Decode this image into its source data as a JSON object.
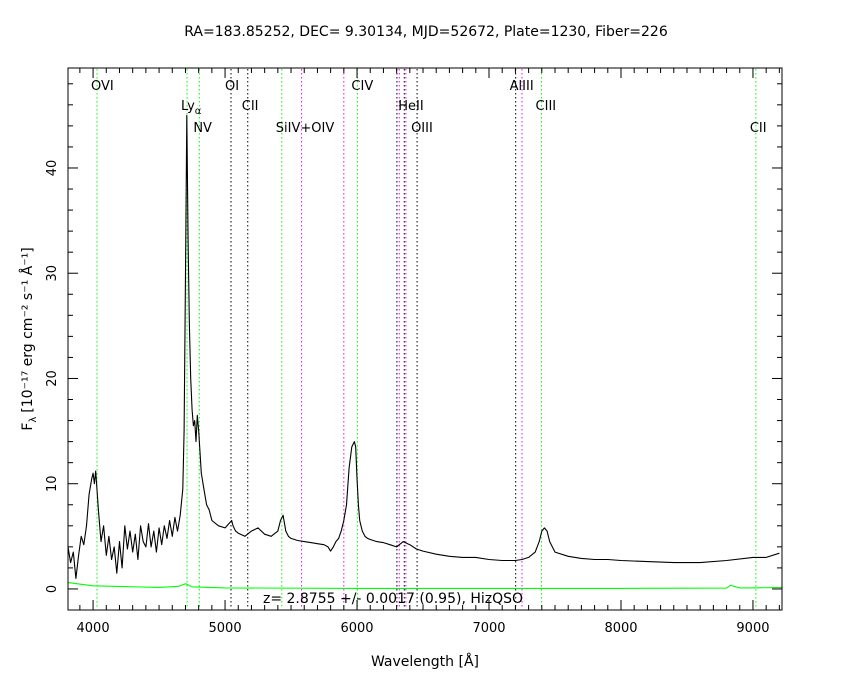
{
  "chart_data": {
    "type": "line",
    "title": "RA=183.85252, DEC= 9.30134, MJD=52672, Plate=1230, Fiber=226",
    "xlabel": "Wavelength [Å]",
    "ylabel": "F",
    "ylabel_sub": "λ",
    "ylabel_units": "[10⁻¹⁷ erg cm⁻² s⁻¹ Å⁻¹]",
    "xlim": [
      3810,
      9220
    ],
    "ylim": [
      -2,
      49.5
    ],
    "xticks": [
      4000,
      5000,
      6000,
      7000,
      8000,
      9000
    ],
    "yticks": [
      0,
      10,
      20,
      30,
      40
    ],
    "annotation": "z= 2.8755 +/- 0.0017 (0.95), HizQSO",
    "series": [
      {
        "role": "flux",
        "color": "#000000",
        "x": [
          3810,
          3830,
          3850,
          3870,
          3890,
          3910,
          3930,
          3950,
          3970,
          3990,
          4000,
          4010,
          4020,
          4040,
          4060,
          4080,
          4100,
          4120,
          4140,
          4160,
          4180,
          4200,
          4220,
          4240,
          4260,
          4280,
          4300,
          4320,
          4340,
          4360,
          4380,
          4400,
          4420,
          4440,
          4460,
          4480,
          4500,
          4520,
          4540,
          4560,
          4580,
          4600,
          4620,
          4640,
          4660,
          4680,
          4690,
          4700,
          4710,
          4720,
          4730,
          4740,
          4750,
          4760,
          4770,
          4780,
          4790,
          4800,
          4810,
          4820,
          4840,
          4860,
          4880,
          4900,
          4950,
          5000,
          5050,
          5060,
          5080,
          5100,
          5150,
          5200,
          5250,
          5300,
          5350,
          5400,
          5420,
          5440,
          5460,
          5480,
          5500,
          5550,
          5600,
          5650,
          5700,
          5750,
          5780,
          5800,
          5820,
          5840,
          5860,
          5880,
          5900,
          5920,
          5940,
          5960,
          5980,
          5990,
          6000,
          6010,
          6020,
          6040,
          6060,
          6080,
          6100,
          6150,
          6200,
          6250,
          6300,
          6350,
          6400,
          6450,
          6500,
          6600,
          6700,
          6800,
          6900,
          7000,
          7100,
          7200,
          7250,
          7300,
          7350,
          7380,
          7400,
          7420,
          7440,
          7460,
          7500,
          7600,
          7700,
          7800,
          7900,
          8000,
          8200,
          8400,
          8600,
          8800,
          9000,
          9100,
          9200
        ],
        "y": [
          4.0,
          2.5,
          3.5,
          1.0,
          3.2,
          5.0,
          4.2,
          6.0,
          9.0,
          10.5,
          11.0,
          10.0,
          11.2,
          7.5,
          4.5,
          6.0,
          3.2,
          5.0,
          2.8,
          4.0,
          1.5,
          4.5,
          2.0,
          6.0,
          3.8,
          5.5,
          3.5,
          5.2,
          2.8,
          6.0,
          4.5,
          4.0,
          6.2,
          4.0,
          5.5,
          3.5,
          5.8,
          4.2,
          6.0,
          4.8,
          6.5,
          5.0,
          6.8,
          5.5,
          7.0,
          9.5,
          15.0,
          30.0,
          45.0,
          33.0,
          25.0,
          20.0,
          17.0,
          15.5,
          16.0,
          14.0,
          16.5,
          15.0,
          13.0,
          11.0,
          9.5,
          8.0,
          7.5,
          6.5,
          6.0,
          5.8,
          6.5,
          6.0,
          5.5,
          5.3,
          5.0,
          5.5,
          5.8,
          5.2,
          5.0,
          5.5,
          6.5,
          7.0,
          5.5,
          5.0,
          4.8,
          4.6,
          4.5,
          4.4,
          4.3,
          4.2,
          4.0,
          3.6,
          4.0,
          4.5,
          4.8,
          5.5,
          6.5,
          8.0,
          11.5,
          13.5,
          14.0,
          13.5,
          10.5,
          8.0,
          6.5,
          5.5,
          5.0,
          4.8,
          4.7,
          4.5,
          4.4,
          4.2,
          4.0,
          4.5,
          4.2,
          3.8,
          3.6,
          3.3,
          3.1,
          3.0,
          3.0,
          2.8,
          2.7,
          2.7,
          2.8,
          3.0,
          3.5,
          4.5,
          5.5,
          5.8,
          5.5,
          4.5,
          3.5,
          3.1,
          2.9,
          2.8,
          2.8,
          2.7,
          2.6,
          2.5,
          2.5,
          2.7,
          3.0,
          3.0,
          3.4
        ]
      },
      {
        "role": "error",
        "color": "#00ff00",
        "x": [
          3810,
          4000,
          4500,
          4650,
          4700,
          4750,
          5000,
          6000,
          7000,
          8000,
          8800,
          8830,
          8900,
          9000,
          9220
        ],
        "y": [
          0.6,
          0.3,
          0.15,
          0.25,
          0.5,
          0.2,
          0.1,
          0.05,
          0.05,
          0.05,
          0.08,
          0.35,
          0.1,
          0.1,
          0.15
        ]
      }
    ],
    "lines": [
      {
        "name": "OVI",
        "wave": 4030,
        "color": "#00ff00",
        "label_row": 1
      },
      {
        "name": "Ly",
        "sub": "α",
        "wave": 4712,
        "color": "#00ff00",
        "label_row": 2
      },
      {
        "name": "NV",
        "wave": 4805,
        "color": "#00ff00",
        "label_row": 3
      },
      {
        "name": "OI",
        "wave": 5045,
        "color": "#000000",
        "label_row": 1
      },
      {
        "name": "CII",
        "wave": 5172,
        "color": "#000000",
        "label_row": 2
      },
      {
        "name": "SiIV+OIV",
        "wave": 5430,
        "color": "#00ff00",
        "label_row": 3
      },
      {
        "name": "",
        "wave": 5580,
        "color": "#ff00ff",
        "label_row": 0
      },
      {
        "name": "",
        "wave": 5900,
        "color": "#ff00ff",
        "label_row": 0
      },
      {
        "name": "CIV",
        "wave": 6003,
        "color": "#00ff00",
        "label_row": 1
      },
      {
        "name": "HeII",
        "wave": 6358,
        "color": "#000000",
        "label_row": 2
      },
      {
        "name": "",
        "wave": 6302,
        "color": "#000000",
        "label_row": 0
      },
      {
        "name": "",
        "wave": 6320,
        "color": "#ff00ff",
        "label_row": 0
      },
      {
        "name": "",
        "wave": 6370,
        "color": "#ff00ff",
        "label_row": 0
      },
      {
        "name": "OIII",
        "wave": 6455,
        "color": "#000000",
        "label_row": 3
      },
      {
        "name": "AlIII",
        "wave": 7202,
        "color": "#000000",
        "label_row": 1
      },
      {
        "name": "",
        "wave": 7250,
        "color": "#ff00ff",
        "label_row": 0
      },
      {
        "name": "CIII",
        "wave": 7398,
        "color": "#00ff00",
        "label_row": 2
      },
      {
        "name": "CII",
        "wave": 9022,
        "color": "#00ff00",
        "label_row": 3
      }
    ]
  }
}
